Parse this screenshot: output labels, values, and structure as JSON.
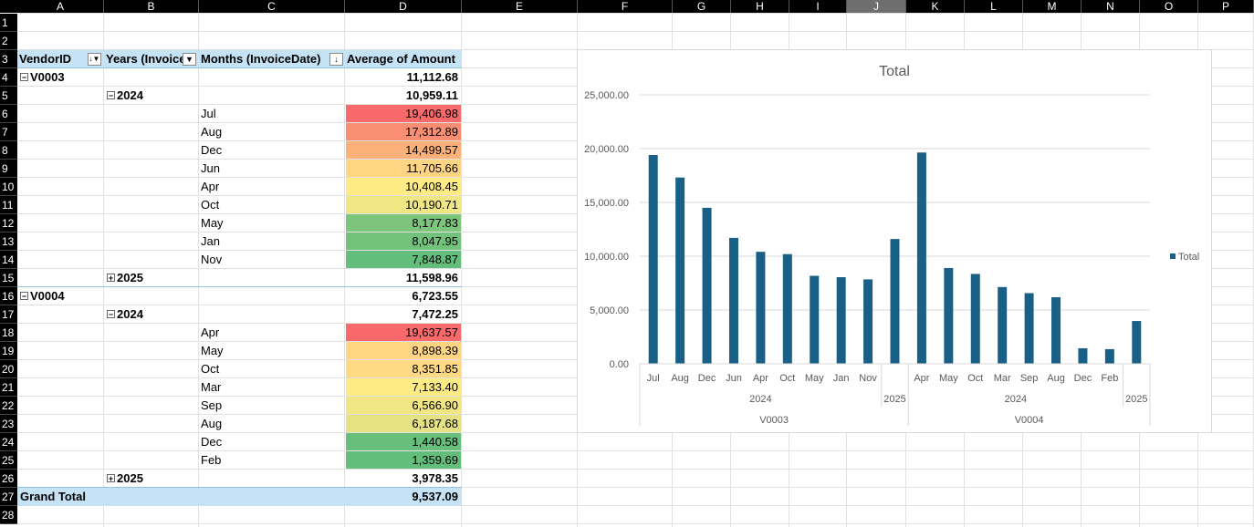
{
  "columns": [
    "A",
    "B",
    "C",
    "D",
    "E",
    "F",
    "G",
    "H",
    "I",
    "J",
    "K",
    "L",
    "M",
    "N",
    "O",
    "P"
  ],
  "selected_column": "J",
  "rows": [
    "1",
    "2",
    "3",
    "4",
    "5",
    "6",
    "7",
    "8",
    "9",
    "10",
    "11",
    "12",
    "13",
    "14",
    "15",
    "16",
    "17",
    "18",
    "19",
    "20",
    "21",
    "22",
    "23",
    "24",
    "25",
    "26",
    "27",
    "28"
  ],
  "pivot": {
    "headers": {
      "vendor": "VendorID",
      "years": "Years (InvoiceDate)",
      "months": "Months (InvoiceDate)",
      "measure": "Average of Amount"
    },
    "rows": [
      {
        "level": "vendor",
        "label": "V0003",
        "value": "11,112.68",
        "expand": "⊟"
      },
      {
        "level": "year",
        "label": "2024",
        "value": "10,959.11",
        "expand": "⊟"
      },
      {
        "level": "month",
        "label": "Jul",
        "value": "19,406.98",
        "color": "#f8696b"
      },
      {
        "level": "month",
        "label": "Aug",
        "value": "17,312.89",
        "color": "#fa8e72"
      },
      {
        "level": "month",
        "label": "Dec",
        "value": "14,499.57",
        "color": "#fcb17a"
      },
      {
        "level": "month",
        "label": "Jun",
        "value": "11,705.66",
        "color": "#ffd583"
      },
      {
        "level": "month",
        "label": "Apr",
        "value": "10,408.45",
        "color": "#ffeb84"
      },
      {
        "level": "month",
        "label": "Oct",
        "value": "10,190.71",
        "color": "#f0e683"
      },
      {
        "level": "month",
        "label": "May",
        "value": "8,177.83",
        "color": "#7dc57c"
      },
      {
        "level": "month",
        "label": "Jan",
        "value": "8,047.95",
        "color": "#72c27b"
      },
      {
        "level": "month",
        "label": "Nov",
        "value": "7,848.87",
        "color": "#63be7b"
      },
      {
        "level": "year",
        "label": "2025",
        "value": "11,598.96",
        "expand": "⊞"
      },
      {
        "level": "vendor",
        "label": "V0004",
        "value": "6,723.55",
        "expand": "⊟"
      },
      {
        "level": "year",
        "label": "2024",
        "value": "7,472.25",
        "expand": "⊟"
      },
      {
        "level": "month",
        "label": "Apr",
        "value": "19,637.57",
        "color": "#f8696b"
      },
      {
        "level": "month",
        "label": "May",
        "value": "8,898.39",
        "color": "#ffd583"
      },
      {
        "level": "month",
        "label": "Oct",
        "value": "8,351.85",
        "color": "#ffd984"
      },
      {
        "level": "month",
        "label": "Mar",
        "value": "7,133.40",
        "color": "#ffeb84"
      },
      {
        "level": "month",
        "label": "Sep",
        "value": "6,566.90",
        "color": "#f0e683"
      },
      {
        "level": "month",
        "label": "Aug",
        "value": "6,187.68",
        "color": "#e4e283"
      },
      {
        "level": "month",
        "label": "Dec",
        "value": "1,440.58",
        "color": "#67bf7b"
      },
      {
        "level": "month",
        "label": "Feb",
        "value": "1,359.69",
        "color": "#63be7b"
      },
      {
        "level": "year",
        "label": "2025",
        "value": "3,978.35",
        "expand": "⊞"
      }
    ],
    "grand_total": {
      "label": "Grand Total",
      "value": "9,537.09"
    }
  },
  "chart_data": {
    "type": "bar",
    "title": "Total",
    "series": [
      {
        "name": "Total",
        "values": [
          19406.98,
          17312.89,
          14499.57,
          11705.66,
          10408.45,
          10190.71,
          8177.83,
          8047.95,
          7848.87,
          11598.96,
          19637.57,
          8898.39,
          8351.85,
          7133.4,
          6566.9,
          6187.68,
          1440.58,
          1359.69,
          3978.35
        ]
      }
    ],
    "categories": [
      "Jul",
      "Aug",
      "Dec",
      "Jun",
      "Apr",
      "Oct",
      "May",
      "Jan",
      "Nov",
      "",
      "Apr",
      "May",
      "Oct",
      "Mar",
      "Sep",
      "Aug",
      "Dec",
      "Feb",
      ""
    ],
    "year_groups": [
      {
        "label": "2024",
        "start": 0,
        "end": 8
      },
      {
        "label": "2025",
        "start": 9,
        "end": 9
      },
      {
        "label": "2024",
        "start": 10,
        "end": 17
      },
      {
        "label": "2025",
        "start": 18,
        "end": 18
      }
    ],
    "vendor_groups": [
      {
        "label": "V0003",
        "start": 0,
        "end": 9
      },
      {
        "label": "V0004",
        "start": 10,
        "end": 18
      }
    ],
    "ylim": [
      0,
      25000
    ],
    "yticks": [
      "0.00",
      "5,000.00",
      "10,000.00",
      "15,000.00",
      "20,000.00",
      "25,000.00"
    ],
    "bar_color": "#1a5f85",
    "legend_position": "right",
    "grid": true
  }
}
